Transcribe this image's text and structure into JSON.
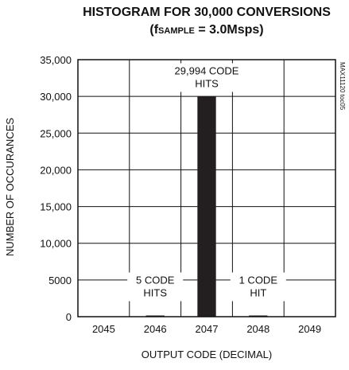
{
  "chart_data": {
    "type": "bar",
    "title": "HISTOGRAM FOR 30,000 CONVERSIONS",
    "subtitle": {
      "prefix": "(f",
      "subscript": "SAMPLE",
      "suffix": " = 3.0Msps)"
    },
    "xlabel": "OUTPUT CODE (DECIMAL)",
    "ylabel": "NUMBER OF OCCURANCES",
    "categories": [
      "2045",
      "2046",
      "2047",
      "2048",
      "2049"
    ],
    "values": [
      0,
      5,
      29994,
      1,
      0
    ],
    "ylim": [
      0,
      35000
    ],
    "yticks": [
      0,
      5000,
      10000,
      15000,
      20000,
      25000,
      30000,
      35000
    ],
    "ytick_labels": [
      "0",
      "5000",
      "10,000",
      "15,000",
      "20,000",
      "25,000",
      "30,000",
      "35,000"
    ],
    "grid": true,
    "bar_color": "#231f20",
    "annotations": [
      {
        "category": "2047",
        "y": 33000,
        "lines": [
          "29,994 CODE",
          "HITS"
        ]
      },
      {
        "category": "2046",
        "y": 4500,
        "lines": [
          "5 CODE",
          "HITS"
        ]
      },
      {
        "category": "2048",
        "y": 4500,
        "lines": [
          "1 CODE",
          "HIT"
        ]
      }
    ],
    "side_code": "MAX11120 toc05"
  }
}
